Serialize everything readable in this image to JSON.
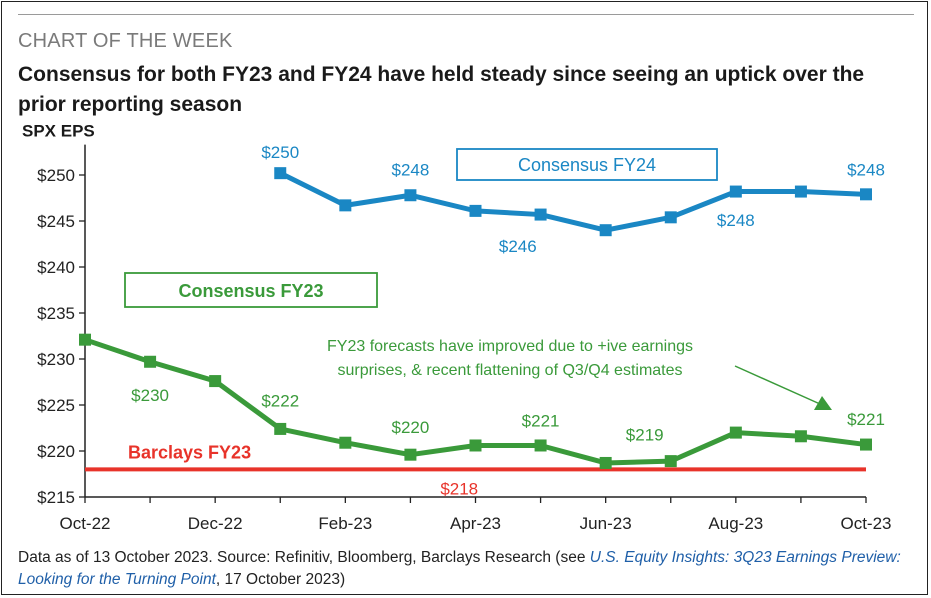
{
  "header": {
    "kicker": "CHART OF THE WEEK",
    "headline": "Consensus for both FY23 and FY24 have held steady since seeing an uptick over the prior reporting season"
  },
  "footer": {
    "prefix": "Data as of 13 October 2023. Source: Refinitiv, Bloomberg, Barclays Research (see ",
    "link": "U.S. Equity Insights: 3Q23 Earnings Preview: Looking for the Turning Point",
    "suffix": ", 17 October 2023)"
  },
  "colors": {
    "fy24": "#1a87c4",
    "fy23": "#3a9a3a",
    "barclays": "#e8332a",
    "axis": "#222222"
  },
  "chart_data": {
    "type": "line",
    "ylabel": "SPX EPS",
    "ylim": [
      215,
      252
    ],
    "yticks": [
      215,
      220,
      225,
      230,
      235,
      240,
      245,
      250
    ],
    "ytick_labels": [
      "$215",
      "$220",
      "$225",
      "$230",
      "$235",
      "$240",
      "$245",
      "$250"
    ],
    "xlim": [
      0,
      12
    ],
    "xticks": [
      0,
      2,
      4,
      6,
      8,
      10,
      12
    ],
    "xtick_labels": [
      "Oct-22",
      "Dec-22",
      "Feb-23",
      "Apr-23",
      "Jun-23",
      "Aug-23",
      "Oct-23"
    ],
    "grid": false,
    "series": [
      {
        "name": "Consensus FY24",
        "color": "#1a87c4",
        "x": [
          3,
          4,
          5,
          6,
          7,
          8,
          9,
          10,
          11,
          12
        ],
        "values": [
          250.2,
          246.7,
          247.8,
          246.1,
          245.7,
          244.0,
          245.4,
          248.2,
          248.2,
          247.9
        ]
      },
      {
        "name": "Consensus FY23",
        "color": "#3a9a3a",
        "x": [
          0,
          1,
          2,
          3,
          4,
          5,
          6,
          7,
          8,
          9,
          10,
          11,
          12
        ],
        "values": [
          232.1,
          229.7,
          227.6,
          222.4,
          220.9,
          219.6,
          220.6,
          220.6,
          218.7,
          218.9,
          222.0,
          221.6,
          220.7
        ]
      },
      {
        "name": "Barclays FY23",
        "color": "#e8332a",
        "x": [
          0,
          12
        ],
        "values": [
          218,
          218
        ]
      }
    ],
    "data_labels": [
      {
        "text": "$250",
        "x": 3,
        "y": 252.5,
        "series": "fy24"
      },
      {
        "text": "$248",
        "x": 5,
        "y": 250.6,
        "series": "fy24"
      },
      {
        "text": "$246",
        "x": 6.65,
        "y": 242.3,
        "series": "fy24"
      },
      {
        "text": "$248",
        "x": 10,
        "y": 245.1,
        "series": "fy24"
      },
      {
        "text": "$248",
        "x": 12,
        "y": 250.6,
        "series": "fy24"
      },
      {
        "text": "$230",
        "x": 1,
        "y": 226.1,
        "series": "fy23"
      },
      {
        "text": "$222",
        "x": 3,
        "y": 225.5,
        "series": "fy23"
      },
      {
        "text": "$220",
        "x": 5,
        "y": 222.6,
        "series": "fy23"
      },
      {
        "text": "$221",
        "x": 7,
        "y": 223.3,
        "series": "fy23"
      },
      {
        "text": "$219",
        "x": 8.6,
        "y": 221.8,
        "series": "fy23"
      },
      {
        "text": "$221",
        "x": 12,
        "y": 223.5,
        "series": "fy23"
      },
      {
        "text": "$218",
        "x": 5.75,
        "y": 215.9,
        "series": "barclays"
      }
    ],
    "legend_boxes": [
      {
        "text": "Consensus FY24",
        "series": "fy24"
      },
      {
        "text": "Consensus FY23",
        "series": "fy23"
      }
    ],
    "barclays_label": "Barclays FY23",
    "annotation": {
      "lines": [
        "FY23 forecasts have improved due to +ive earnings",
        "surprises, & recent flattening of Q3/Q4 estimates"
      ]
    }
  }
}
